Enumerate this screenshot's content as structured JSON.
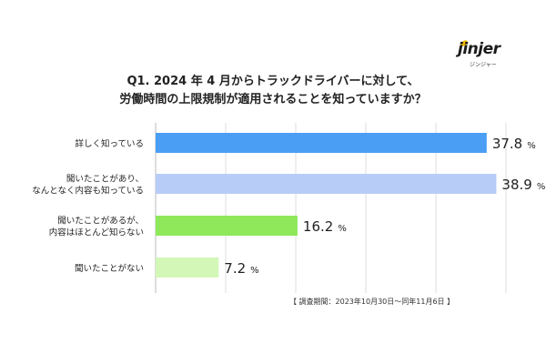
{
  "brand": {
    "name": "jinjer",
    "sub": "ジンジャー",
    "accent": "#f5b800"
  },
  "title_lines": [
    "Q1. 2024 年 4 月からトラックドライバーに対して、",
    "労働時間の上限規制が適用されることを知っていますか？"
  ],
  "survey_period": "【 調査期間：2023年10月30日〜同年11月6日 】",
  "chart_data": {
    "type": "bar",
    "orientation": "horizontal",
    "categories": [
      [
        "詳しく知っている"
      ],
      [
        "聞いたことがあり、",
        "なんとなく内容も知っている"
      ],
      [
        "聞いたことがあるが、",
        "内容はほとんど知らない"
      ],
      [
        "聞いたことがない"
      ]
    ],
    "values": [
      37.8,
      38.9,
      16.2,
      7.2
    ],
    "value_labels": [
      "37.8",
      "38.9",
      "16.2",
      "7.2"
    ],
    "unit": "%",
    "colors": [
      "#4a9ff5",
      "#b7cdf7",
      "#8ee85a",
      "#d2f7b6"
    ],
    "xlim": [
      0,
      40
    ],
    "grid": true
  }
}
